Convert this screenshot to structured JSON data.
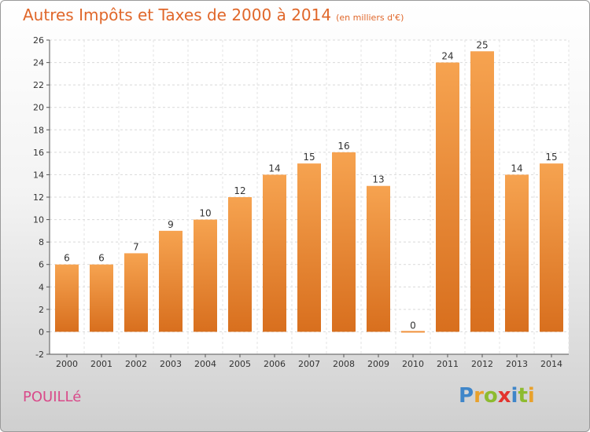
{
  "chart_data": {
    "type": "bar",
    "title": "Autres Impôts et Taxes de 2000 à 2014",
    "subtitle": "(en milliers d'€)",
    "categories": [
      "2000",
      "2001",
      "2002",
      "2003",
      "2004",
      "2005",
      "2006",
      "2007",
      "2008",
      "2009",
      "2010",
      "2011",
      "2012",
      "2013",
      "2014"
    ],
    "values": [
      6,
      6,
      7,
      9,
      10,
      12,
      14,
      15,
      16,
      13,
      0,
      24,
      25,
      14,
      15
    ],
    "ylim": [
      -2,
      26
    ],
    "yticks": [
      -2,
      0,
      2,
      4,
      6,
      8,
      10,
      12,
      14,
      16,
      18,
      20,
      22,
      24,
      26
    ],
    "xlabel": "",
    "ylabel": "",
    "grid": true,
    "bar_color": "#f0903a"
  },
  "commune": "POUILLé",
  "brand": {
    "letters": [
      "P",
      "r",
      "o",
      "x",
      "i",
      "t",
      "i"
    ],
    "colors": [
      "#3f86c9",
      "#e9a12b",
      "#8dbb2f",
      "#e3332e",
      "#3f86c9",
      "#8dbb2f",
      "#e9a12b"
    ]
  }
}
